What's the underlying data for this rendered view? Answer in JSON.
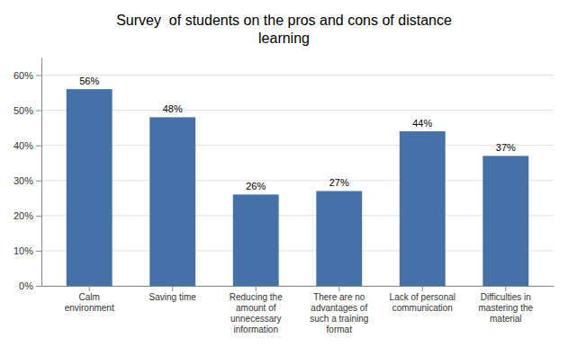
{
  "chart_data": {
    "type": "bar",
    "title": "Survey  of students on the pros and cons of distance\nlearning",
    "categories": [
      "Calm\nenvironment",
      "Saving time",
      "Reducing the\namount of\nunnecessary\ninformation",
      "There are no\nadvantages of\nsuch a training\nformat",
      "Lack of personal\ncommunication",
      "Difficulties in\nmastering the\nmaterial"
    ],
    "values": [
      56,
      48,
      26,
      27,
      44,
      37
    ],
    "value_labels": [
      "56%",
      "48%",
      "26%",
      "27%",
      "44%",
      "37%"
    ],
    "data_labels": true,
    "color": "#4472a8",
    "ylim": [
      0,
      65
    ],
    "yticks": [
      {
        "value": 0,
        "label": "0%"
      },
      {
        "value": 10,
        "label": "10%"
      },
      {
        "value": 20,
        "label": "20%"
      },
      {
        "value": 30,
        "label": "30%"
      },
      {
        "value": 40,
        "label": "40%"
      },
      {
        "value": 50,
        "label": "50%"
      },
      {
        "value": 60,
        "label": "60%"
      }
    ],
    "grid": true
  }
}
